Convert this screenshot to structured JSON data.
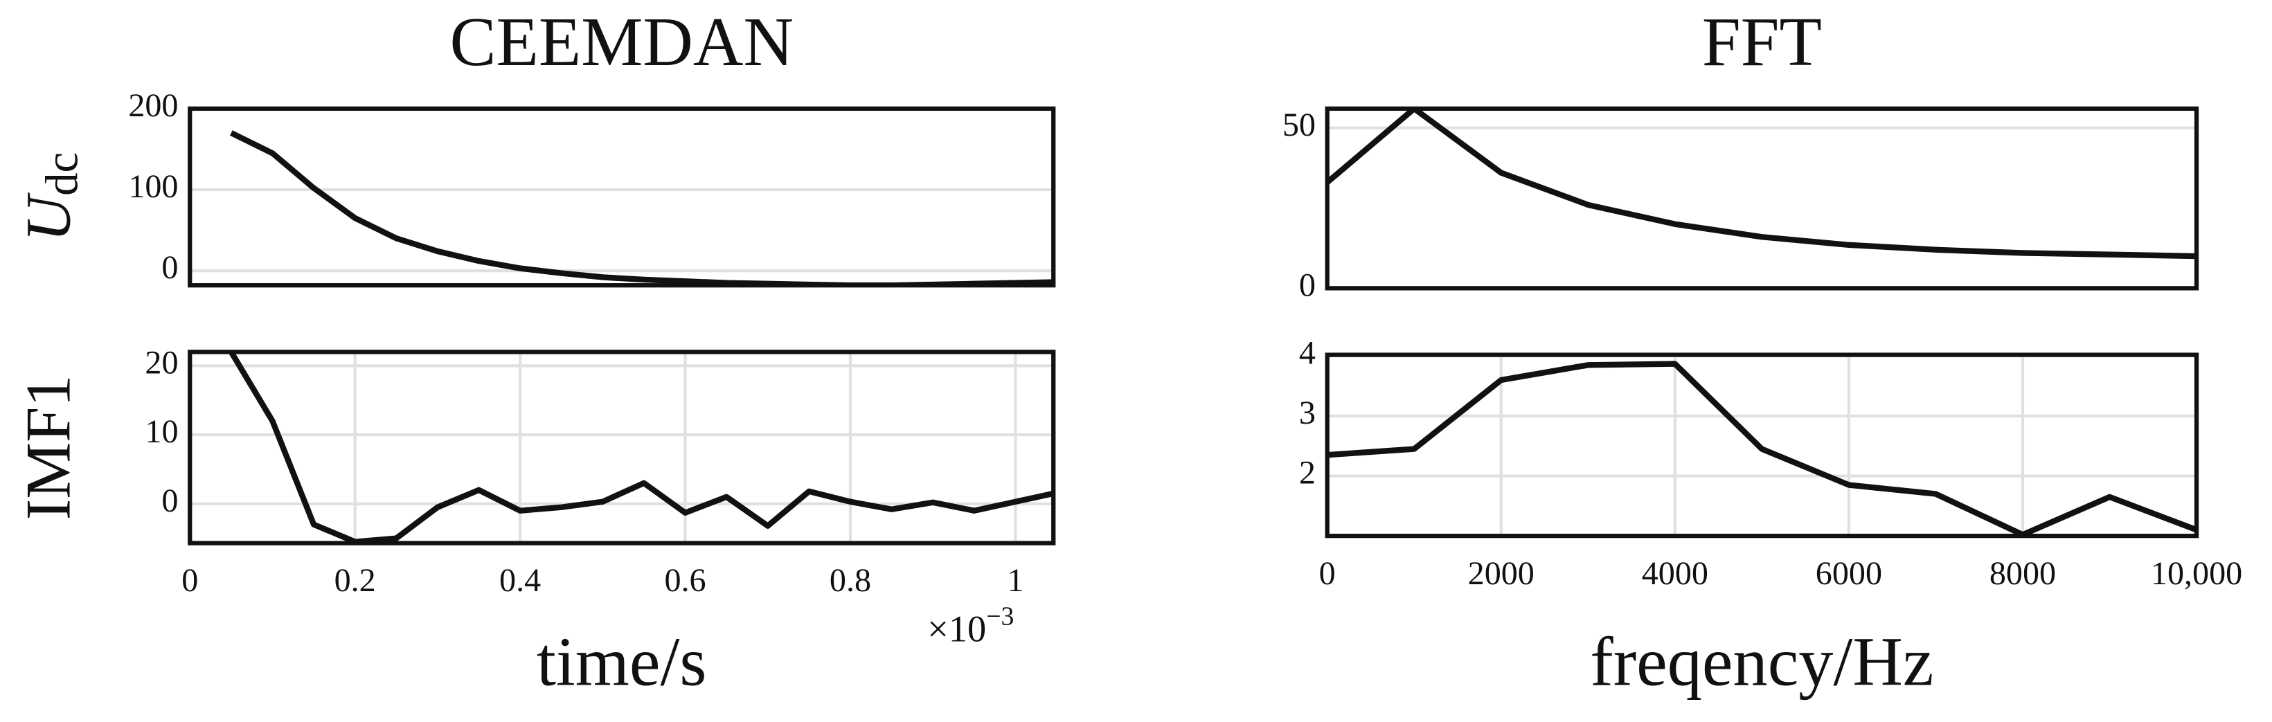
{
  "chart_data": [
    {
      "type": "line",
      "title": "CEEMDAN",
      "ylabel": {
        "text": "U",
        "subscript": "dc"
      },
      "color": "#111111",
      "grid": "y",
      "x": [
        0.05,
        0.1,
        0.15,
        0.2,
        0.25,
        0.3,
        0.35,
        0.4,
        0.45,
        0.5,
        0.55,
        0.6,
        0.65,
        0.7,
        0.75,
        0.8,
        0.85,
        0.9,
        0.95,
        1.0,
        1.05
      ],
      "values": [
        170,
        145,
        102,
        65,
        40,
        24,
        12,
        3,
        -3,
        -8,
        -11,
        -13,
        -15,
        -16,
        -17,
        -18,
        -18,
        -17,
        -16,
        -15,
        -14
      ],
      "xlim": [
        0,
        1.046
      ],
      "ylim": [
        -18,
        200
      ],
      "yticks": [
        0,
        100,
        200
      ]
    },
    {
      "type": "line",
      "ylabel": {
        "text": "IMF1"
      },
      "xlabel": "time/s",
      "x_multiplier": {
        "base": "×10",
        "exponent": "−3"
      },
      "color": "#111111",
      "grid": "both",
      "x": [
        0.05,
        0.1,
        0.15,
        0.2,
        0.25,
        0.3,
        0.35,
        0.4,
        0.45,
        0.5,
        0.55,
        0.6,
        0.65,
        0.7,
        0.75,
        0.8,
        0.85,
        0.9,
        0.95,
        1.0,
        1.05
      ],
      "values": [
        22,
        12,
        -3,
        -5.5,
        -5,
        -0.5,
        2,
        -1,
        -0.5,
        0.3,
        3,
        -1.3,
        1,
        -3.2,
        1.8,
        0.3,
        -0.8,
        0.2,
        -1,
        0.3,
        1.6
      ],
      "xlim": [
        0,
        1.046
      ],
      "ylim": [
        -5.7,
        22
      ],
      "yticks": [
        0,
        10,
        20
      ],
      "xticks": [
        0,
        0.2,
        0.4,
        0.6,
        0.8,
        1
      ]
    },
    {
      "type": "line",
      "title": "FFT",
      "color": "#111111",
      "grid": "y",
      "x": [
        0,
        1000,
        2000,
        3000,
        4000,
        5000,
        6000,
        7000,
        8000,
        9000,
        10000
      ],
      "values": [
        33,
        56,
        36,
        26,
        20,
        16,
        13.5,
        12,
        11,
        10.5,
        10
      ],
      "xlim": [
        0,
        10000
      ],
      "ylim": [
        0,
        56
      ],
      "yticks": [
        0,
        50
      ]
    },
    {
      "type": "line",
      "xlabel": "freqency/Hz",
      "color": "#111111",
      "grid": "both",
      "x": [
        0,
        1000,
        2000,
        3000,
        4000,
        5000,
        6000,
        7000,
        8000,
        9000,
        10000
      ],
      "values": [
        2.35,
        2.45,
        3.6,
        3.85,
        3.87,
        2.45,
        1.85,
        1.7,
        1.02,
        1.65,
        1.1
      ],
      "xlim": [
        0,
        10000
      ],
      "ylim": [
        1,
        4.02
      ],
      "yticks": [
        2,
        3,
        4
      ],
      "xticks": [
        0,
        2000,
        4000,
        6000,
        {
          "value": 8000,
          "label": "8000"
        },
        {
          "value": 10000,
          "label": "10,000"
        }
      ]
    }
  ]
}
